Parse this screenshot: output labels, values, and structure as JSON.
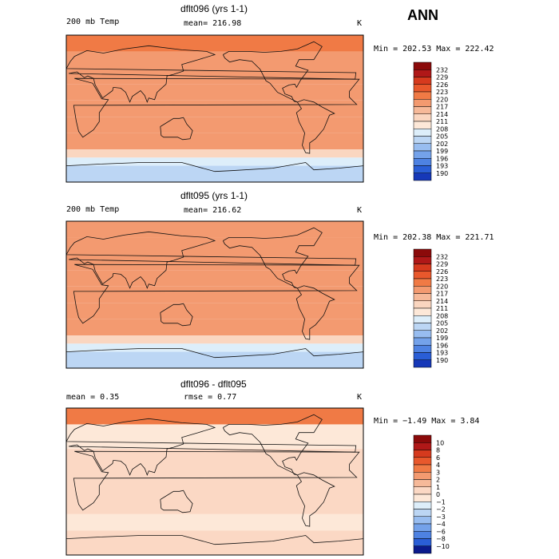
{
  "season_label": "ANN",
  "colors": {
    "temp_bins": [
      "#8b0a0a",
      "#b01818",
      "#d63a1e",
      "#e8582c",
      "#f07a45",
      "#f39a70",
      "#f6b999",
      "#fad6c0",
      "#fde8d8",
      "#ddeefa",
      "#bcd6f4",
      "#98bdf0",
      "#74a2ea",
      "#4e82e2",
      "#2a5ed6",
      "#1638b8",
      "#0b1a8c"
    ],
    "diff_bins": [
      "#8b0a0a",
      "#b01818",
      "#d63a1e",
      "#e8582c",
      "#f07a45",
      "#f39a70",
      "#f6b999",
      "#fbd8c4",
      "#fde8d8",
      "#ddeefa",
      "#bcd6f4",
      "#98bdf0",
      "#74a2ea",
      "#4e82e2",
      "#2a5ed6",
      "#0b1a8c"
    ]
  },
  "chart_data": [
    {
      "type": "heatmap",
      "title": "dflt096 (yrs 1-1)",
      "field_label": "200 mb Temp",
      "stat_text": "mean= 216.98",
      "units": "K",
      "minmax_text": "Min = 202.53 Max = 222.42",
      "min": 202.53,
      "max": 222.42,
      "mean": 216.98,
      "colorbar_levels": [
        "232",
        "229",
        "226",
        "223",
        "220",
        "217",
        "214",
        "211",
        "208",
        "205",
        "202",
        "199",
        "196",
        "193",
        "190"
      ],
      "bands": [
        {
          "lat_range": [
            70,
            90
          ],
          "value": 221
        },
        {
          "lat_range": [
            30,
            70
          ],
          "value": 218
        },
        {
          "lat_range": [
            10,
            30
          ],
          "value": 219
        },
        {
          "lat_range": [
            -10,
            10
          ],
          "value": 218
        },
        {
          "lat_range": [
            -30,
            -10
          ],
          "value": 219
        },
        {
          "lat_range": [
            -50,
            -30
          ],
          "value": 217
        },
        {
          "lat_range": [
            -60,
            -50
          ],
          "value": 212
        },
        {
          "lat_range": [
            -70,
            -60
          ],
          "value": 206
        },
        {
          "lat_range": [
            -90,
            -70
          ],
          "value": 203
        }
      ]
    },
    {
      "type": "heatmap",
      "title": "dflt095 (yrs 1-1)",
      "field_label": "200 mb Temp",
      "stat_text": "mean= 216.62",
      "units": "K",
      "minmax_text": "Min = 202.38 Max = 221.71",
      "min": 202.38,
      "max": 221.71,
      "mean": 216.62,
      "colorbar_levels": [
        "232",
        "229",
        "226",
        "223",
        "220",
        "217",
        "214",
        "211",
        "208",
        "205",
        "202",
        "199",
        "196",
        "193",
        "190"
      ],
      "bands": [
        {
          "lat_range": [
            70,
            90
          ],
          "value": 219
        },
        {
          "lat_range": [
            30,
            70
          ],
          "value": 218
        },
        {
          "lat_range": [
            10,
            30
          ],
          "value": 219
        },
        {
          "lat_range": [
            -10,
            10
          ],
          "value": 218
        },
        {
          "lat_range": [
            -30,
            -10
          ],
          "value": 219
        },
        {
          "lat_range": [
            -50,
            -30
          ],
          "value": 217
        },
        {
          "lat_range": [
            -60,
            -50
          ],
          "value": 212
        },
        {
          "lat_range": [
            -70,
            -60
          ],
          "value": 206
        },
        {
          "lat_range": [
            -90,
            -70
          ],
          "value": 203
        }
      ]
    },
    {
      "type": "heatmap",
      "title": "dflt096 - dflt095",
      "stat_text": "mean =   0.35",
      "stat2_text": "rmse =   0.77",
      "units": "K",
      "minmax_text": "Min =  −1.49 Max =   3.84",
      "min": -1.49,
      "max": 3.84,
      "mean": 0.35,
      "rmse": 0.77,
      "colorbar_levels": [
        "10",
        "8",
        "6",
        "4",
        "3",
        "2",
        "1",
        "0",
        "−1",
        "−2",
        "−3",
        "−4",
        "−6",
        "−8",
        "−10"
      ],
      "bands": [
        {
          "lat_range": [
            70,
            90
          ],
          "value": 3
        },
        {
          "lat_range": [
            40,
            70
          ],
          "value": -0.5
        },
        {
          "lat_range": [
            -40,
            40
          ],
          "value": 0.5
        },
        {
          "lat_range": [
            -60,
            -40
          ],
          "value": -0.5
        },
        {
          "lat_range": [
            -90,
            -60
          ],
          "value": 0.5
        }
      ]
    }
  ]
}
